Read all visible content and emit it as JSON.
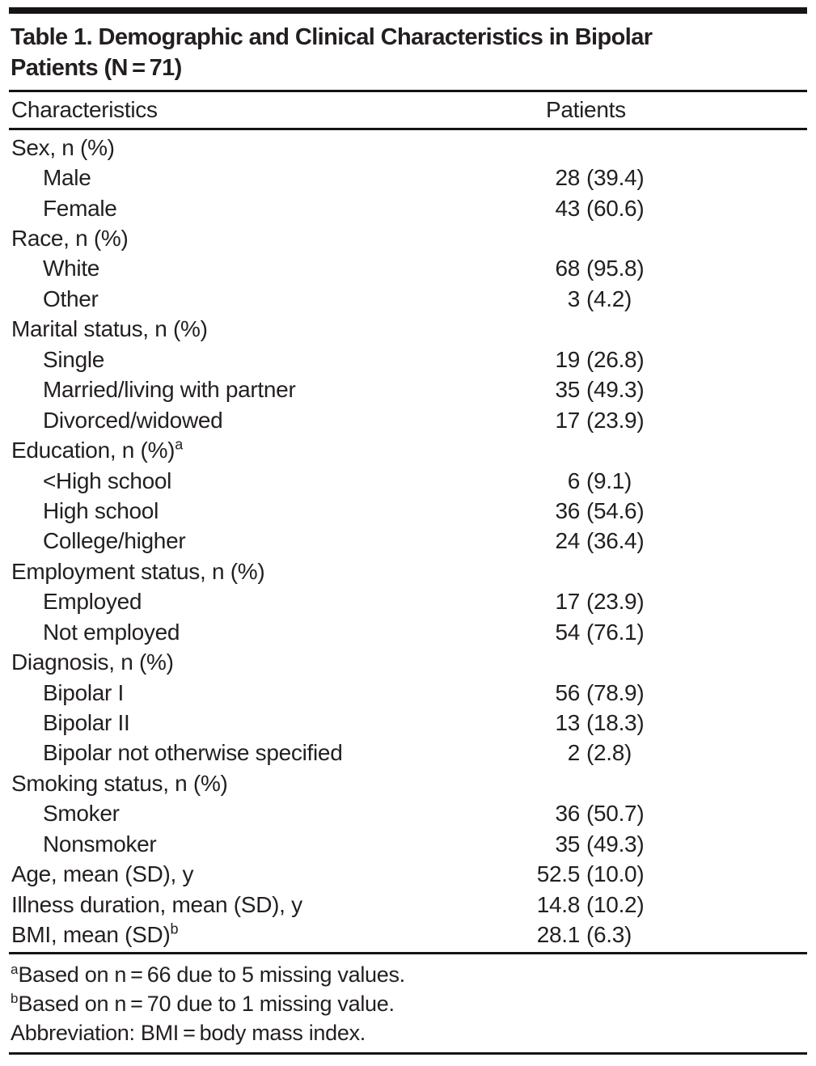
{
  "meta": {
    "background": "#ffffff",
    "text_color": "#231f20",
    "rule_color": "#161314"
  },
  "table": {
    "title_lines": [
      "Table 1. Demographic and Clinical Characteristics in Bipolar",
      "Patients (N = 71)"
    ],
    "header": {
      "characteristics": "Characteristics",
      "patients": "Patients"
    },
    "rows": [
      {
        "label": "Sex, n (%)",
        "sup": "",
        "value": "",
        "indent": false
      },
      {
        "label": "Male",
        "sup": "",
        "value": "28 (39.4)",
        "indent": true
      },
      {
        "label": "Female",
        "sup": "",
        "value": "43 (60.6)",
        "indent": true
      },
      {
        "label": "Race, n (%)",
        "sup": "",
        "value": "",
        "indent": false
      },
      {
        "label": "White",
        "sup": "",
        "value": "68 (95.8)",
        "indent": true
      },
      {
        "label": "Other",
        "sup": "",
        "value": "3 (4.2)",
        "indent": true
      },
      {
        "label": "Marital status, n (%)",
        "sup": "",
        "value": "",
        "indent": false
      },
      {
        "label": "Single",
        "sup": "",
        "value": "19 (26.8)",
        "indent": true
      },
      {
        "label": "Married/living with partner",
        "sup": "",
        "value": "35 (49.3)",
        "indent": true
      },
      {
        "label": "Divorced/widowed",
        "sup": "",
        "value": "17 (23.9)",
        "indent": true
      },
      {
        "label": "Education, n (%)",
        "sup": "a",
        "value": "",
        "indent": false
      },
      {
        "label": "<High school",
        "sup": "",
        "value": "6 (9.1)",
        "indent": true
      },
      {
        "label": "High school",
        "sup": "",
        "value": "36 (54.6)",
        "indent": true
      },
      {
        "label": "College/higher",
        "sup": "",
        "value": "24 (36.4)",
        "indent": true
      },
      {
        "label": "Employment status, n (%)",
        "sup": "",
        "value": "",
        "indent": false
      },
      {
        "label": "Employed",
        "sup": "",
        "value": "17 (23.9)",
        "indent": true
      },
      {
        "label": "Not employed",
        "sup": "",
        "value": "54 (76.1)",
        "indent": true
      },
      {
        "label": "Diagnosis, n (%)",
        "sup": "",
        "value": "",
        "indent": false
      },
      {
        "label": "Bipolar I",
        "sup": "",
        "value": "56 (78.9)",
        "indent": true
      },
      {
        "label": "Bipolar II",
        "sup": "",
        "value": "13 (18.3)",
        "indent": true
      },
      {
        "label": "Bipolar not otherwise specified",
        "sup": "",
        "value": "2 (2.8)",
        "indent": true
      },
      {
        "label": "Smoking status, n (%)",
        "sup": "",
        "value": "",
        "indent": false
      },
      {
        "label": "Smoker",
        "sup": "",
        "value": "36 (50.7)",
        "indent": true
      },
      {
        "label": "Nonsmoker",
        "sup": "",
        "value": "35 (49.3)",
        "indent": true
      },
      {
        "label": "Age, mean (SD), y",
        "sup": "",
        "value": "52.5 (10.0)",
        "indent": false
      },
      {
        "label": "Illness duration, mean (SD), y",
        "sup": "",
        "value": "14.8 (10.2)",
        "indent": false
      },
      {
        "label": "BMI, mean (SD)",
        "sup": "b",
        "value": "28.1 (6.3)",
        "indent": false
      }
    ],
    "footnotes": [
      {
        "sup": "a",
        "text": "Based on n = 66 due to 5 missing values."
      },
      {
        "sup": "b",
        "text": "Based on n = 70 due to 1 missing value."
      },
      {
        "sup": "",
        "text": "Abbreviation: BMI = body mass index."
      }
    ]
  }
}
